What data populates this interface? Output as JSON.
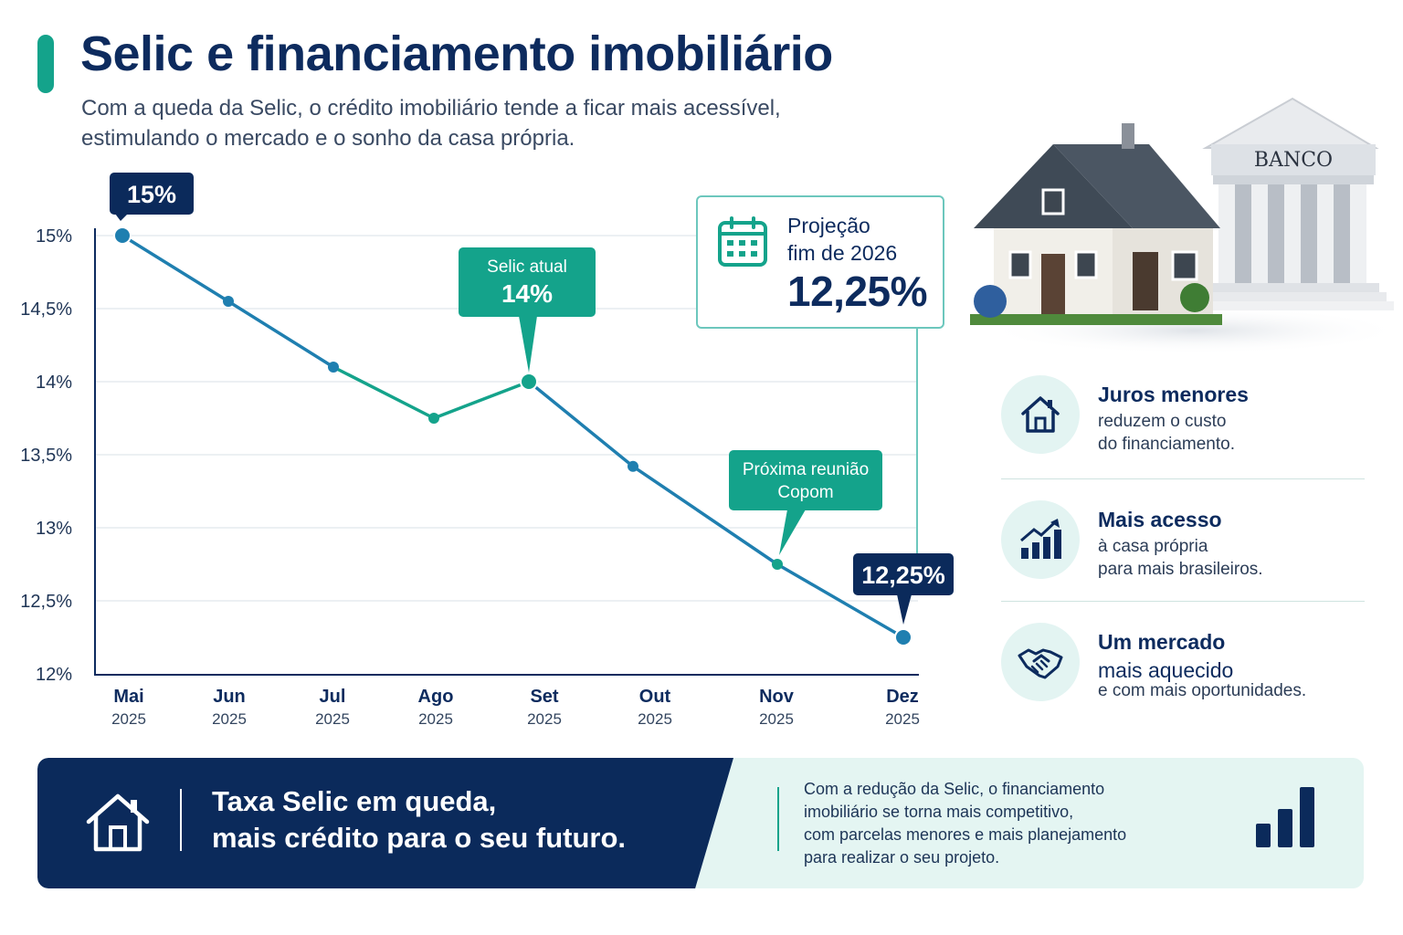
{
  "header": {
    "title": "Selic e financiamento imobiliário",
    "subtitle": "Com a queda da Selic, o crédito imobiliário tende a ficar mais acessível, estimulando o mercado e o sonho da casa própria."
  },
  "colors": {
    "navy": "#0b2a5b",
    "teal": "#14a38b",
    "line_blue": "#1f7fb0",
    "light_teal": "#e4f5f2"
  },
  "chart_data": {
    "type": "line",
    "title": "",
    "xlabel": "",
    "ylabel": "",
    "categories": [
      {
        "month": "Mai",
        "year": "2025"
      },
      {
        "month": "Jun",
        "year": "2025"
      },
      {
        "month": "Jul",
        "year": "2025"
      },
      {
        "month": "Ago",
        "year": "2025"
      },
      {
        "month": "Set",
        "year": "2025"
      },
      {
        "month": "Out",
        "year": "2025"
      },
      {
        "month": "Nov",
        "year": "2025"
      },
      {
        "month": "Dez",
        "year": "2025"
      }
    ],
    "series": [
      {
        "values": [
          15.0,
          14.55,
          14.1,
          13.75,
          14.0,
          13.42,
          12.75,
          12.25
        ]
      }
    ],
    "ylim": [
      12,
      15
    ],
    "yticks": [
      {
        "value": 15,
        "label": "15%"
      },
      {
        "value": 14.5,
        "label": "14,5%"
      },
      {
        "value": 14,
        "label": "14%"
      },
      {
        "value": 13.5,
        "label": "13,5%"
      },
      {
        "value": 13,
        "label": "13%"
      },
      {
        "value": 12.5,
        "label": "12,5%"
      },
      {
        "value": 12,
        "label": "12%"
      }
    ],
    "grid": true,
    "annotations": [
      {
        "index": 0,
        "style": "navy",
        "text": "15%"
      },
      {
        "index": 4,
        "style": "teal",
        "label": "Selic atual",
        "text": "14%"
      },
      {
        "index": 6,
        "style": "teal",
        "label": "Próxima reunião",
        "text": "Copom"
      },
      {
        "index": 7,
        "style": "navy",
        "text": "12,25%"
      }
    ]
  },
  "projection": {
    "label": "Projeção\nfim de 2026",
    "value": "12,25%",
    "icon": "calendar-icon"
  },
  "illustration": {
    "bank_sign": "BANCO"
  },
  "benefits": [
    {
      "icon": "house-icon",
      "title": "Juros menores",
      "text": "reduzem o custo\ndo financiamento."
    },
    {
      "icon": "growth-chart-icon",
      "title": "Mais acesso",
      "text": "à casa própria\npara mais brasileiros."
    },
    {
      "icon": "handshake-icon",
      "title": "Um mercado",
      "subtitle": "mais aquecido",
      "text": "e com mais oportunidades."
    }
  ],
  "banner": {
    "headline": "Taxa Selic em queda,\nmais crédito para o seu futuro.",
    "text": "Com a redução da Selic, o financiamento\nimobiliário se torna mais competitivo,\ncom parcelas menores e mais planejamento\npara realizar o seu projeto."
  }
}
